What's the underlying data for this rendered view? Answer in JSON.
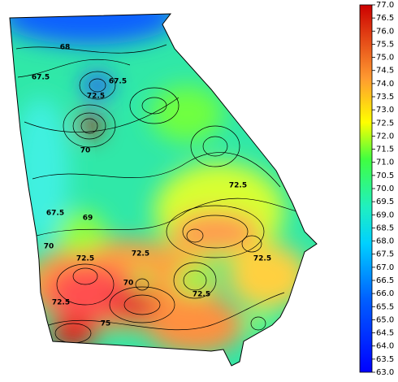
{
  "map": {
    "colorbar": {
      "lim": [
        63,
        77
      ],
      "ticks": [
        {
          "value": 63,
          "label": "63.0"
        },
        {
          "value": 63.5,
          "label": "63.5"
        },
        {
          "value": 64,
          "label": "64.0"
        },
        {
          "value": 64.5,
          "label": "64.5"
        },
        {
          "value": 65,
          "label": "65.0"
        },
        {
          "value": 65.5,
          "label": "65.5"
        },
        {
          "value": 66,
          "label": "66.0"
        },
        {
          "value": 66.5,
          "label": "66.5"
        },
        {
          "value": 67,
          "label": "67.0"
        },
        {
          "value": 67.5,
          "label": "67.5"
        },
        {
          "value": 68,
          "label": "68.0"
        },
        {
          "value": 68.5,
          "label": "68.5"
        },
        {
          "value": 69,
          "label": "69.0"
        },
        {
          "value": 69.5,
          "label": "69.5"
        },
        {
          "value": 70,
          "label": "70.0"
        },
        {
          "value": 70.5,
          "label": "70.5"
        },
        {
          "value": 71,
          "label": "71.0"
        },
        {
          "value": 71.5,
          "label": "71.5"
        },
        {
          "value": 72,
          "label": "72.0"
        },
        {
          "value": 72.5,
          "label": "72.5"
        },
        {
          "value": 73,
          "label": "73.0"
        },
        {
          "value": 73.5,
          "label": "73.5"
        },
        {
          "value": 74,
          "label": "74.0"
        },
        {
          "value": 74.5,
          "label": "74.5"
        },
        {
          "value": 75,
          "label": "75.0"
        },
        {
          "value": 75.5,
          "label": "75.5"
        },
        {
          "value": 76,
          "label": "76.0"
        },
        {
          "value": 76.5,
          "label": "76.5"
        },
        {
          "value": 77,
          "label": "77.0"
        }
      ]
    },
    "contour_labels": [
      "68",
      "67.5",
      "67.5",
      "72.5",
      "70",
      "67.5",
      "69",
      "70",
      "72.5",
      "72.5",
      "72.5",
      "70",
      "72.5",
      "72.5",
      "75",
      "72.5"
    ]
  }
}
